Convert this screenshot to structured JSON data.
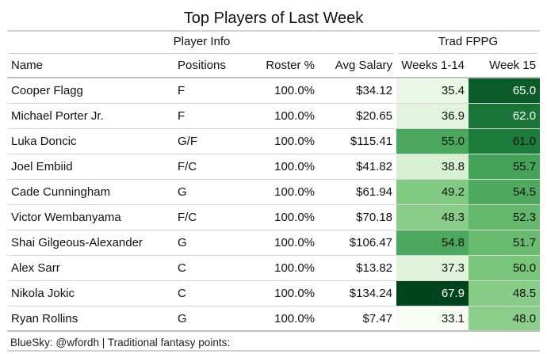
{
  "title": "Top Players of Last Week",
  "spanners": {
    "player_info": "Player Info",
    "trad_fppg": "Trad FPPG"
  },
  "columns": [
    "Name",
    "Positions",
    "Roster %",
    "Avg Salary",
    "Weeks 1-14",
    "Week 15"
  ],
  "rows": [
    {
      "name": "Cooper Flagg",
      "positions": "F",
      "roster": "100.0%",
      "salary": "$34.12",
      "w1_14": "35.4",
      "w15": "65.0"
    },
    {
      "name": "Michael Porter Jr.",
      "positions": "F",
      "roster": "100.0%",
      "salary": "$20.65",
      "w1_14": "36.9",
      "w15": "62.0"
    },
    {
      "name": "Luka Doncic",
      "positions": "G/F",
      "roster": "100.0%",
      "salary": "$115.41",
      "w1_14": "55.0",
      "w15": "61.0"
    },
    {
      "name": "Joel Embiid",
      "positions": "F/C",
      "roster": "100.0%",
      "salary": "$41.82",
      "w1_14": "38.8",
      "w15": "55.7"
    },
    {
      "name": "Cade Cunningham",
      "positions": "G",
      "roster": "100.0%",
      "salary": "$61.94",
      "w1_14": "49.2",
      "w15": "54.5"
    },
    {
      "name": "Victor Wembanyama",
      "positions": "F/C",
      "roster": "100.0%",
      "salary": "$70.18",
      "w1_14": "48.3",
      "w15": "52.3"
    },
    {
      "name": "Shai Gilgeous-Alexander",
      "positions": "G",
      "roster": "100.0%",
      "salary": "$106.47",
      "w1_14": "54.8",
      "w15": "51.7"
    },
    {
      "name": "Alex Sarr",
      "positions": "C",
      "roster": "100.0%",
      "salary": "$13.82",
      "w1_14": "37.3",
      "w15": "50.0"
    },
    {
      "name": "Nikola Jokic",
      "positions": "C",
      "roster": "100.0%",
      "salary": "$134.24",
      "w1_14": "67.9",
      "w15": "48.5"
    },
    {
      "name": "Ryan Rollins",
      "positions": "G",
      "roster": "100.0%",
      "salary": "$7.47",
      "w1_14": "33.1",
      "w15": "48.0"
    }
  ],
  "footer": "BlueSky: @wfordh | Traditional fantasy points: https://ottoneu.fangraphs.com/basketball/help/rosters_and_scoring",
  "colors": {
    "scale_low": "#f7fcf5",
    "scale_mid_low": "#c7e9c0",
    "scale_mid": "#74c476",
    "scale_mid_high": "#238b45",
    "scale_high": "#00441b",
    "text_dark": "#111111",
    "text_light": "#ffffff"
  },
  "chart_data": {
    "type": "table",
    "title": "Top Players of Last Week",
    "column_groups": [
      {
        "label": "Player Info",
        "columns": [
          "Name",
          "Positions",
          "Roster %",
          "Avg Salary"
        ]
      },
      {
        "label": "Trad FPPG",
        "columns": [
          "Weeks 1-14",
          "Week 15"
        ]
      }
    ],
    "heatmap_columns": [
      "Weeks 1-14",
      "Week 15"
    ],
    "color_domain": [
      33.1,
      67.9
    ],
    "values_weeks_1_14": [
      35.4,
      36.9,
      55.0,
      38.8,
      49.2,
      48.3,
      54.8,
      37.3,
      67.9,
      33.1
    ],
    "values_week_15": [
      65.0,
      62.0,
      61.0,
      55.7,
      54.5,
      52.3,
      51.7,
      50.0,
      48.5,
      48.0
    ]
  }
}
